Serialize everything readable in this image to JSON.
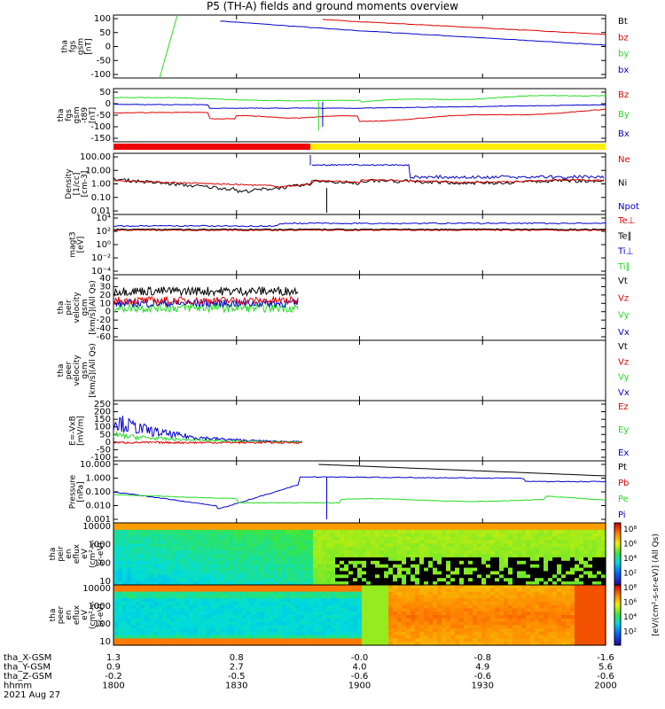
{
  "title": "P5 (TH-A) fields and ground moments overview",
  "colors": {
    "black": "#000000",
    "red": "#dd0000",
    "green": "#22dd22",
    "blue": "#0000cc",
    "yellow": "#ffee00",
    "bar_red": "#ee0000"
  },
  "xaxis": {
    "rows": [
      {
        "label": "tha_X-GSM",
        "values": [
          "1.3",
          "0.8",
          "-0.0",
          "-0.8",
          "-1.6"
        ]
      },
      {
        "label": "tha_Y-GSM",
        "values": [
          "0.9",
          "2.7",
          "4.0",
          "4.9",
          "5.6"
        ]
      },
      {
        "label": "tha_Z-GSM",
        "values": [
          "-0.2",
          "-0.5",
          "-0.6",
          "-0.6",
          "-0.6"
        ]
      },
      {
        "label": "hhmm",
        "values": [
          "1800",
          "1830",
          "1900",
          "1930",
          "2000"
        ]
      }
    ],
    "date": "2021 Aug 27"
  },
  "chart_data": [
    {
      "type": "line",
      "ylabel": [
        "tha",
        "fgs",
        "gsm",
        "[nT]"
      ],
      "yticks": [
        "100",
        "50",
        "0",
        "-50",
        "-100"
      ],
      "ylim": [
        -100,
        110
      ],
      "series": [
        {
          "name": "Bt",
          "color": "black"
        },
        {
          "name": "bz",
          "color": "red"
        },
        {
          "name": "by",
          "color": "green"
        },
        {
          "name": "bx",
          "color": "blue"
        }
      ]
    },
    {
      "type": "line",
      "ylabel": [
        "tha",
        "fgs",
        "gsm",
        "-t89",
        "[nT]"
      ],
      "yticks": [
        "50",
        "0",
        "-50",
        "-100",
        "-150"
      ],
      "ylim": [
        -180,
        60
      ],
      "series": [
        {
          "name": "Bz",
          "color": "red"
        },
        {
          "name": "By",
          "color": "green"
        },
        {
          "name": "Bx",
          "color": "blue"
        }
      ]
    },
    {
      "type": "bar",
      "note": "mode bar",
      "segments": [
        {
          "color": "red",
          "from": "1800",
          "to": "~1844"
        },
        {
          "color": "yellow",
          "from": "~1844",
          "to": "2000"
        }
      ]
    },
    {
      "type": "line",
      "ylabel": [
        "Density",
        "[1/cc]",
        "[cm-3]"
      ],
      "yticks": [
        "100.00",
        "10.00",
        "1.00",
        "0.10",
        "0.01"
      ],
      "log": true,
      "series": [
        {
          "name": "Ne",
          "color": "red"
        },
        {
          "name": "Ni",
          "color": "black"
        },
        {
          "name": "Npot",
          "color": "blue"
        }
      ]
    },
    {
      "type": "line",
      "ylabel": [
        "magt3",
        "[eV]"
      ],
      "yticks": [
        "10⁴",
        "10²",
        "10⁰",
        "10⁻²",
        "10⁻⁴"
      ],
      "log": true,
      "series": [
        {
          "name": "Te⊥",
          "color": "red"
        },
        {
          "name": "Te∥",
          "color": "black"
        },
        {
          "name": "Ti⊥",
          "color": "blue"
        },
        {
          "name": "Ti∥",
          "color": "green"
        }
      ]
    },
    {
      "type": "line",
      "ylabel": [
        "tha",
        "peir",
        "velocity",
        "gsm",
        "[km/s](All Qs)"
      ],
      "yticks": [
        "40",
        "30",
        "20",
        "10",
        "0",
        "-20",
        "-40",
        "-60"
      ],
      "ylim": [
        -60,
        45
      ],
      "series": [
        {
          "name": "Vt",
          "color": "black"
        },
        {
          "name": "Vz",
          "color": "red"
        },
        {
          "name": "Vy",
          "color": "green"
        },
        {
          "name": "Vx",
          "color": "blue"
        }
      ]
    },
    {
      "type": "line",
      "ylabel": [
        "tha",
        "peer",
        "velocity",
        "gsm",
        "[km/s](All Qs)"
      ],
      "yticks": [],
      "series": [
        {
          "name": "Vt",
          "color": "black"
        },
        {
          "name": "Vz",
          "color": "red"
        },
        {
          "name": "Vy",
          "color": "green"
        },
        {
          "name": "Vx",
          "color": "blue"
        }
      ]
    },
    {
      "type": "line",
      "ylabel": [
        "E=-VxB",
        "[mV/m]"
      ],
      "yticks": [
        "250",
        "200",
        "150",
        "100",
        "50",
        "0",
        "-50",
        "-100"
      ],
      "ylim": [
        -100,
        260
      ],
      "series": [
        {
          "name": "Ez",
          "color": "red"
        },
        {
          "name": "Ey",
          "color": "green"
        },
        {
          "name": "Ex",
          "color": "blue"
        }
      ]
    },
    {
      "type": "line",
      "ylabel": [
        "Pressure",
        "[nPa]"
      ],
      "yticks": [
        "10.000",
        "1.000",
        "0.100",
        "0.010",
        "0.001"
      ],
      "log": true,
      "series": [
        {
          "name": "Pt",
          "color": "black"
        },
        {
          "name": "Pb",
          "color": "red"
        },
        {
          "name": "Pe",
          "color": "green"
        },
        {
          "name": "Pi",
          "color": "blue"
        }
      ]
    },
    {
      "type": "heatmap",
      "ylabel": [
        "tha",
        "peir",
        "en",
        "eflux",
        "eV",
        "(cm²-s-",
        "sr-eV)"
      ],
      "yticks": [
        "10000",
        "1000",
        "100",
        "10"
      ]
    },
    {
      "type": "heatmap",
      "ylabel": [
        "tha",
        "peer",
        "en",
        "eflux",
        "eV",
        "(cm²-s-",
        "sr-eV)"
      ],
      "yticks": [
        "10000",
        "1000",
        "100",
        "10"
      ]
    }
  ],
  "colorbar": {
    "ticks": [
      "10⁸",
      "10⁶",
      "10⁴",
      "10²",
      "10⁸",
      "10⁶",
      "10⁴",
      "10²"
    ],
    "label": "[eV/(cm²-s-sr-eV)] (All Qs)"
  }
}
